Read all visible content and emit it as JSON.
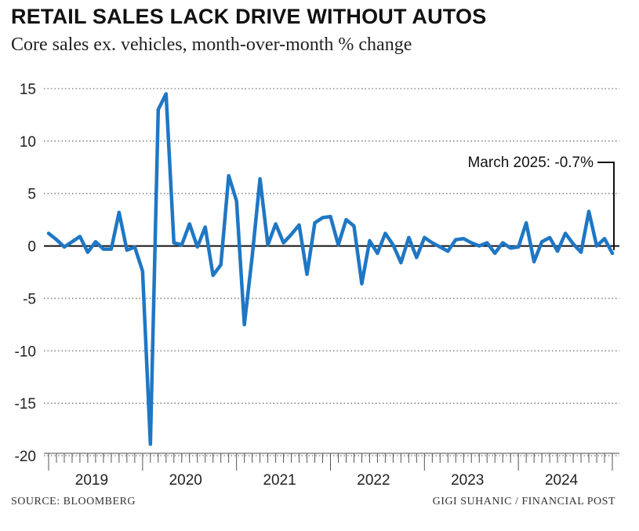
{
  "title": "RETAIL SALES LACK DRIVE WITHOUT AUTOS",
  "subtitle": "Core sales ex. vehicles, month-over-month % change",
  "source": "SOURCE: BLOOMBERG",
  "credit": "GIGI SUHANIC / FINANCIAL POST",
  "colors": {
    "line": "#1f77c4",
    "text": "#111111",
    "grid": "#888888"
  },
  "chart_data": {
    "type": "line",
    "title": "RETAIL SALES LACK DRIVE WITHOUT AUTOS",
    "subtitle": "Core sales ex. vehicles, month-over-month % change",
    "xlabel": "",
    "ylabel": "",
    "ylim": [
      -20,
      15
    ],
    "yticks": [
      15,
      10,
      5,
      0,
      -5,
      -10,
      -15,
      -20
    ],
    "ytick_labels": [
      "15",
      "10",
      "5",
      "0",
      "-5",
      "-10",
      "-15",
      "-20"
    ],
    "grid": "dotted horizontal",
    "years": [
      "2019",
      "2020",
      "2021",
      "2022",
      "2023",
      "2024"
    ],
    "x_start": "2019-01",
    "x_end": "2025-03",
    "annotation": {
      "label": "March 2025: -0.7%",
      "x": "2025-03",
      "y": -0.7
    },
    "series": [
      {
        "name": "Core retail sales ex. vehicles, MoM % change",
        "values": [
          1.2,
          0.6,
          -0.1,
          0.4,
          0.9,
          -0.6,
          0.4,
          -0.3,
          -0.3,
          3.2,
          -0.4,
          -0.1,
          -2.4,
          -18.9,
          13.0,
          14.5,
          0.3,
          0.1,
          2.1,
          -0.1,
          1.8,
          -2.8,
          -1.8,
          6.7,
          4.3,
          -7.5,
          -1.0,
          6.4,
          0.1,
          2.1,
          0.3,
          1.1,
          2.0,
          -2.7,
          2.2,
          2.7,
          2.8,
          0.1,
          2.5,
          1.9,
          -3.6,
          0.5,
          -0.7,
          1.2,
          0.1,
          -1.6,
          0.8,
          -1.1,
          0.8,
          0.3,
          -0.1,
          -0.5,
          0.6,
          0.7,
          0.3,
          0.0,
          0.3,
          -0.7,
          0.3,
          -0.2,
          -0.1,
          2.2,
          -1.5,
          0.4,
          0.8,
          -0.5,
          1.2,
          0.2,
          -0.6,
          3.3,
          0.0,
          0.7,
          -0.7
        ]
      }
    ]
  }
}
